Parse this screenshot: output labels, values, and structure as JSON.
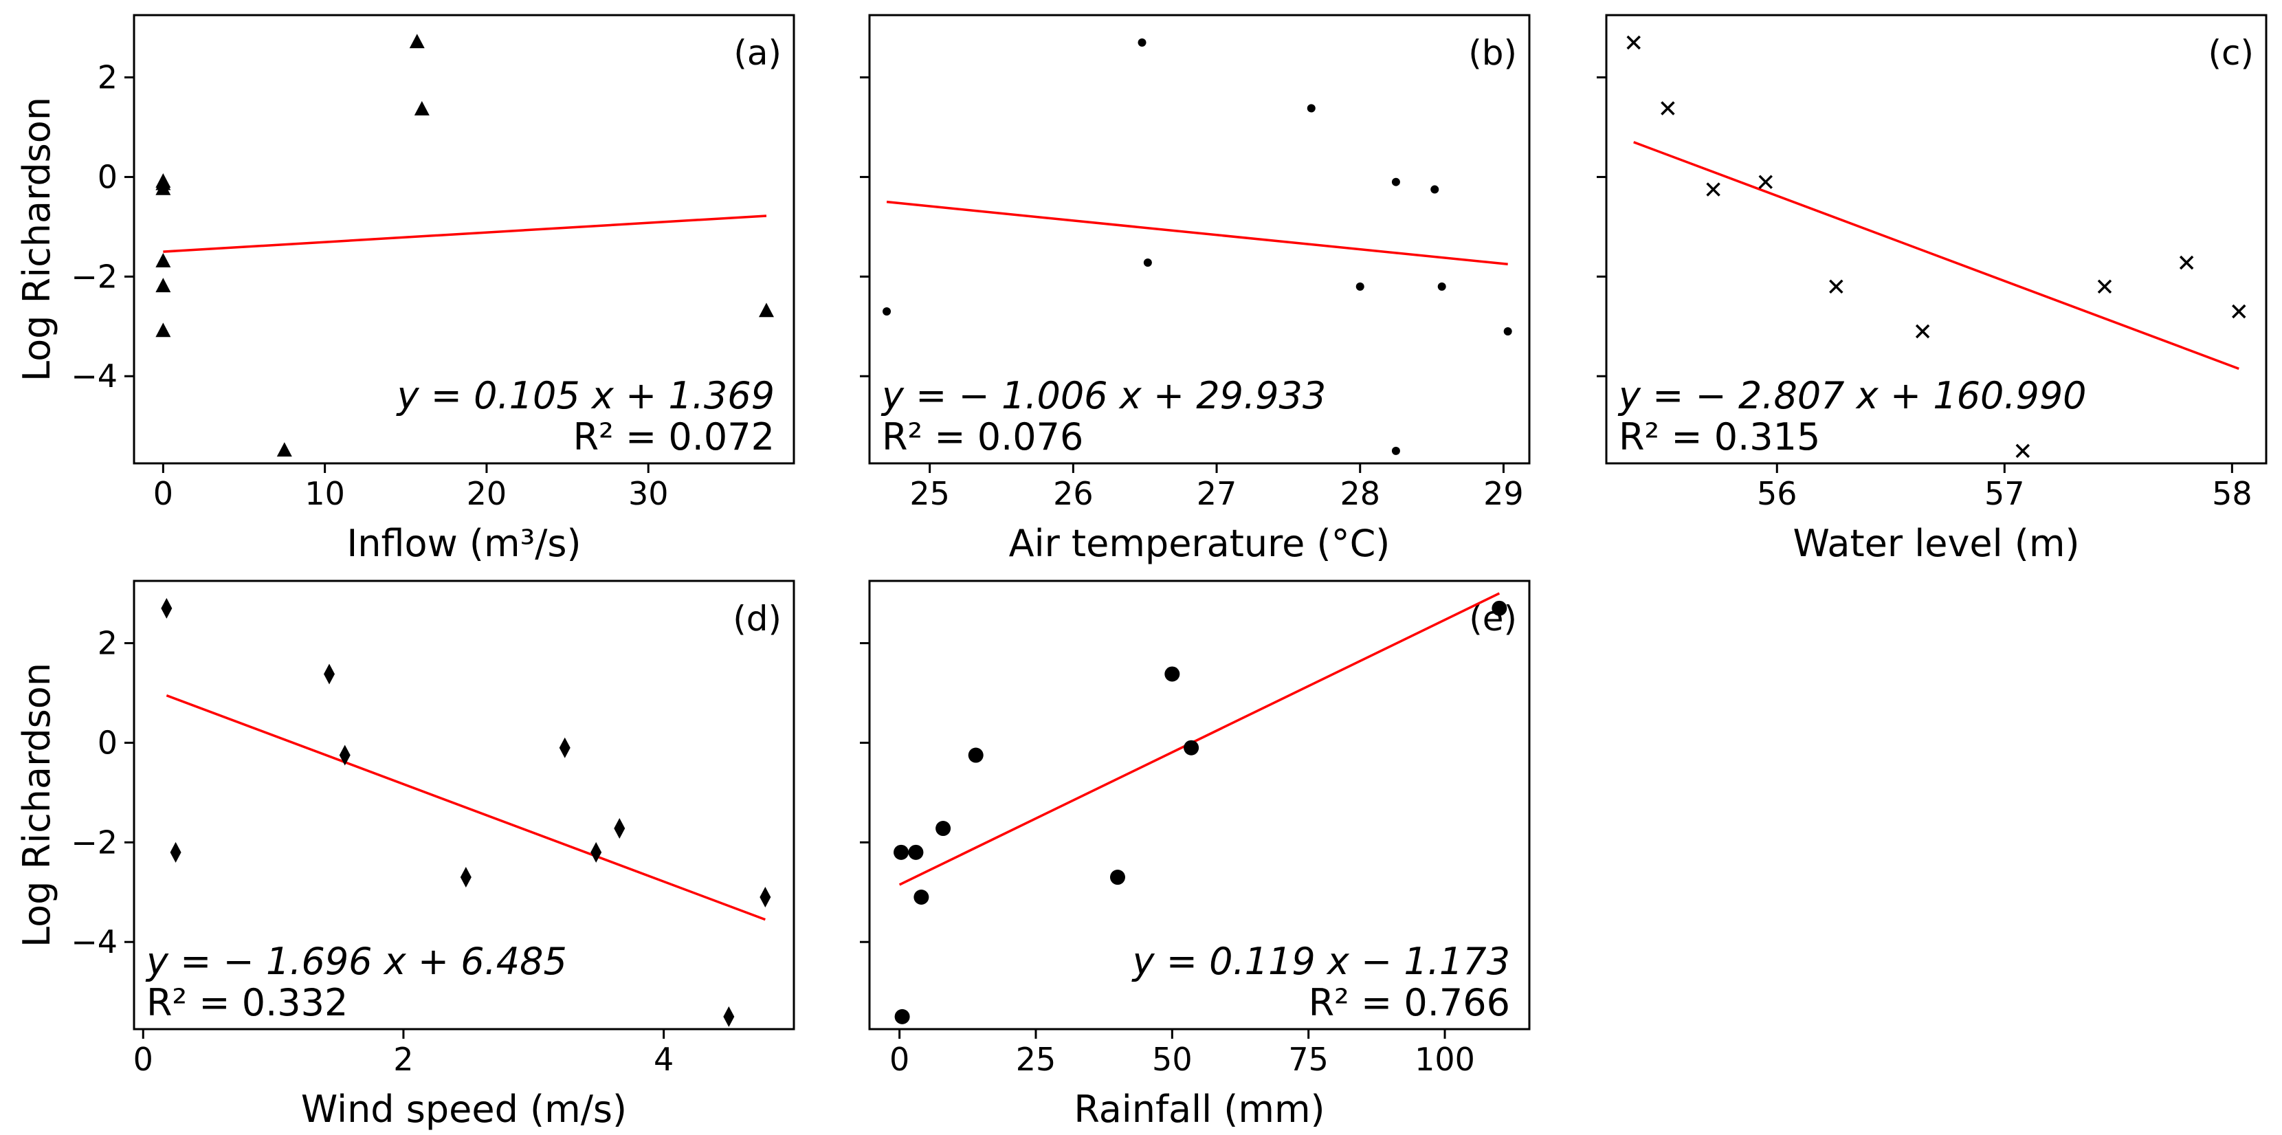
{
  "chart_data": [
    {
      "type": "scatter",
      "panel_label": "(a)",
      "xlabel": "Inflow (m³/s)",
      "ylabel": "Log Richardson",
      "xlim": [
        -1.8,
        39
      ],
      "ylim": [
        -5.75,
        3.25
      ],
      "xticks": [
        0,
        10,
        20,
        30
      ],
      "yticks": [
        2,
        0,
        -2,
        -4
      ],
      "marker": "triangle",
      "x": [
        0,
        0,
        0,
        0,
        0,
        0,
        7.5,
        15.7,
        16.0,
        37.3
      ],
      "y": [
        -0.1,
        -0.25,
        -1.7,
        -2.2,
        -3.1,
        -0.15,
        -5.5,
        2.7,
        1.35,
        -2.7
      ],
      "fit": {
        "x0": 0,
        "x1": 37.3,
        "y0": -1.5,
        "y1": -0.78
      },
      "equation": "y = 0.105 x + 1.369",
      "r2": "R² = 0.072",
      "equation_position": "bottom-right",
      "show_ylabel": true
    },
    {
      "type": "scatter",
      "panel_label": "(b)",
      "xlabel": "Air temperature (°C)",
      "ylabel": "",
      "xlim": [
        24.58,
        29.18
      ],
      "ylim": [
        -5.75,
        3.25
      ],
      "xticks": [
        25,
        26,
        27,
        28,
        29
      ],
      "yticks": [
        2,
        0,
        -2,
        -4
      ],
      "marker": "dot",
      "x": [
        24.7,
        26.48,
        26.52,
        27.66,
        28.0,
        28.25,
        28.25,
        28.52,
        28.57,
        29.03
      ],
      "y": [
        -2.7,
        2.7,
        -1.72,
        1.38,
        -2.2,
        -0.1,
        -5.5,
        -0.25,
        -2.2,
        -3.1
      ],
      "fit": {
        "x0": 24.7,
        "x1": 29.03,
        "y0": -0.5,
        "y1": -1.75
      },
      "equation": "y = − 1.006 x + 29.933",
      "r2": "R² = 0.076",
      "equation_position": "bottom-left",
      "show_ylabel": false
    },
    {
      "type": "scatter",
      "panel_label": "(c)",
      "xlabel": "Water level (m)",
      "ylabel": "",
      "xlim": [
        55.25,
        58.15
      ],
      "ylim": [
        -5.75,
        3.25
      ],
      "xticks": [
        56,
        57,
        58
      ],
      "yticks": [
        2,
        0,
        -2,
        -4
      ],
      "marker": "x",
      "x": [
        55.37,
        55.52,
        55.72,
        55.95,
        56.26,
        56.64,
        57.08,
        57.44,
        57.8,
        58.03
      ],
      "y": [
        2.7,
        1.38,
        -0.25,
        -0.1,
        -2.2,
        -3.1,
        -5.5,
        -2.2,
        -1.72,
        -2.7
      ],
      "fit": {
        "x0": 55.37,
        "x1": 58.03,
        "y0": 0.7,
        "y1": -3.85
      },
      "equation": "y = − 2.807 x + 160.990",
      "r2": "R² = 0.315",
      "equation_position": "bottom-left",
      "show_ylabel": false
    },
    {
      "type": "scatter",
      "panel_label": "(d)",
      "xlabel": "Wind speed (m/s)",
      "ylabel": "Log Richardson",
      "xlim": [
        -0.07,
        5.0
      ],
      "ylim": [
        -5.75,
        3.25
      ],
      "xticks": [
        0,
        2,
        4
      ],
      "yticks": [
        2,
        0,
        -2,
        -4
      ],
      "marker": "diamond",
      "x": [
        0.18,
        0.25,
        1.43,
        1.55,
        2.48,
        3.24,
        3.48,
        3.66,
        4.5,
        4.78
      ],
      "y": [
        2.7,
        -2.2,
        1.38,
        -0.25,
        -2.7,
        -0.1,
        -2.2,
        -1.72,
        -5.5,
        -3.1
      ],
      "fit": {
        "x0": 0.18,
        "x1": 4.78,
        "y0": 0.95,
        "y1": -3.55
      },
      "equation": "y = − 1.696 x + 6.485",
      "r2": "R² = 0.332",
      "equation_position": "bottom-left",
      "show_ylabel": true
    },
    {
      "type": "scatter",
      "panel_label": "(e)",
      "xlabel": "Rainfall (mm)",
      "ylabel": "",
      "xlim": [
        -5.5,
        115.5
      ],
      "ylim": [
        -5.75,
        3.25
      ],
      "xticks": [
        0,
        25,
        50,
        75,
        100
      ],
      "yticks": [
        2,
        0,
        -2,
        -4
      ],
      "marker": "circle",
      "x": [
        0.3,
        0.5,
        3.0,
        4.0,
        8.0,
        14.0,
        40.0,
        50.0,
        53.5,
        110.0
      ],
      "y": [
        -2.2,
        -5.5,
        -2.2,
        -3.1,
        -1.72,
        -0.25,
        -2.7,
        1.38,
        -0.1,
        2.7
      ],
      "fit": {
        "x0": 0,
        "x1": 110,
        "y0": -2.85,
        "y1": 3.0
      },
      "equation": "y = 0.119 x − 1.173",
      "r2": "R² = 0.766",
      "equation_position": "bottom-right",
      "show_ylabel": false
    }
  ]
}
